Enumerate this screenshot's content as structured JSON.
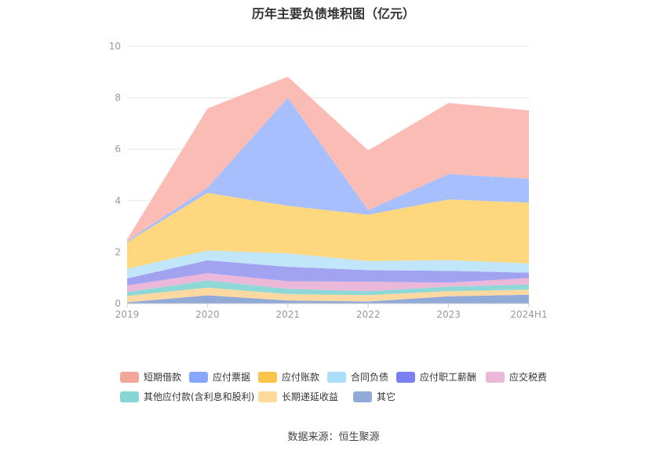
{
  "title": "历年主要负债堆积图（亿元）",
  "source": "数据来源：恒生聚源",
  "chart_data": {
    "type": "area",
    "stacked": true,
    "categories": [
      "2019",
      "2020",
      "2021",
      "2022",
      "2023",
      "2024H1"
    ],
    "ylim": [
      0,
      10
    ],
    "yticks": [
      "0",
      "2",
      "4",
      "6",
      "8",
      "10"
    ],
    "grid": true,
    "legend_position": "bottom",
    "series": [
      {
        "name": "其它",
        "color": "#92aad8",
        "values": [
          0.05,
          0.32,
          0.12,
          0.08,
          0.28,
          0.34
        ]
      },
      {
        "name": "长期递延收益",
        "color": "#fdd9a1",
        "values": [
          0.25,
          0.3,
          0.25,
          0.25,
          0.2,
          0.2
        ]
      },
      {
        "name": "其他应付款(含利息和股利)",
        "color": "#8ed8d8",
        "values": [
          0.15,
          0.28,
          0.2,
          0.15,
          0.18,
          0.2
        ]
      },
      {
        "name": "应交税费",
        "color": "#ebb8da",
        "values": [
          0.25,
          0.28,
          0.3,
          0.37,
          0.15,
          0.25
        ]
      },
      {
        "name": "应付职工薪酬",
        "color": "#a2a3f0",
        "values": [
          0.28,
          0.5,
          0.56,
          0.45,
          0.46,
          0.21
        ]
      },
      {
        "name": "合同负债",
        "color": "#c1e6fa",
        "values": [
          0.37,
          0.38,
          0.52,
          0.35,
          0.42,
          0.36
        ]
      },
      {
        "name": "应付账款",
        "color": "#fed77e",
        "values": [
          1.04,
          2.24,
          1.85,
          1.8,
          2.36,
          2.36
        ]
      },
      {
        "name": "应付票据",
        "color": "#a7bffd",
        "values": [
          0.05,
          0.2,
          4.2,
          0.18,
          0.98,
          0.93
        ]
      },
      {
        "name": "短期借款",
        "color": "#fbbcb6",
        "values": [
          0.06,
          3.08,
          0.82,
          2.32,
          2.77,
          2.66
        ]
      }
    ]
  },
  "legend": [
    {
      "label": "短期借款",
      "color": "#f5a69b"
    },
    {
      "label": "应付票据",
      "color": "#86a7fd"
    },
    {
      "label": "应付账款",
      "color": "#fbc349"
    },
    {
      "label": "合同负债",
      "color": "#a9dffb"
    },
    {
      "label": "应付职工薪酬",
      "color": "#7c7ef3"
    },
    {
      "label": "应交税费",
      "color": "#ebb8da"
    },
    {
      "label": "其他应付款(含利息和股利)",
      "color": "#86d6d6"
    },
    {
      "label": "长期递延收益",
      "color": "#fdd99a"
    },
    {
      "label": "其它",
      "color": "#92aad8"
    }
  ]
}
